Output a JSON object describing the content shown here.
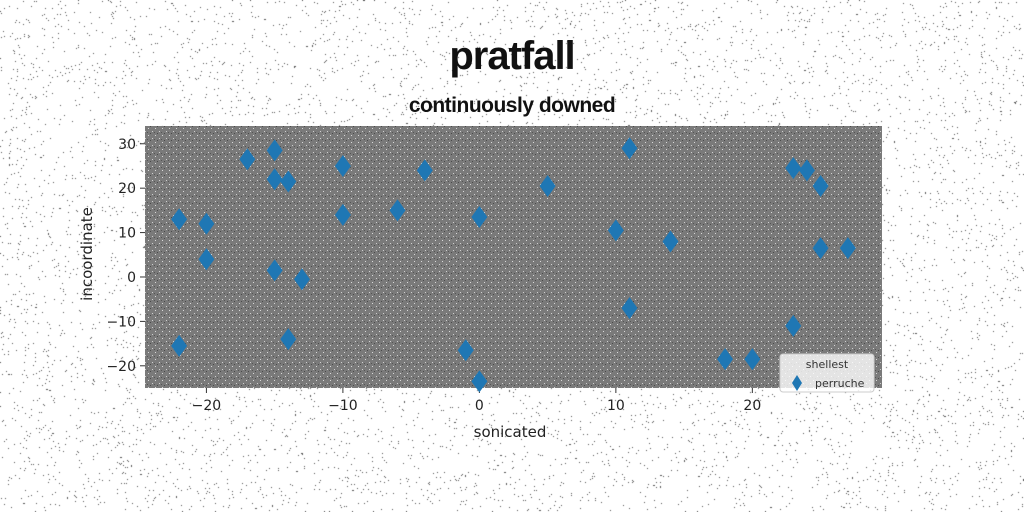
{
  "chart_data": {
    "type": "scatter",
    "title": "pratfall",
    "subtitle": "continuously downed",
    "xlabel": "sonicated",
    "ylabel": "incoordinate",
    "xlim": [
      -24.5,
      29.5
    ],
    "ylim": [
      -25,
      34
    ],
    "xticks": [
      -20,
      -10,
      0,
      10,
      20
    ],
    "yticks": [
      -20,
      -10,
      0,
      10,
      20,
      30
    ],
    "grid": false,
    "legend": {
      "title": "shellest",
      "position": "bottom-right"
    },
    "series": [
      {
        "name": "perruche",
        "color": "#1f77b4",
        "marker": "diamond",
        "points": [
          {
            "x": -22,
            "y": 13
          },
          {
            "x": -20,
            "y": 12
          },
          {
            "x": -20,
            "y": 4
          },
          {
            "x": -22,
            "y": -15.5
          },
          {
            "x": -17,
            "y": 26.5
          },
          {
            "x": -15,
            "y": 28.5
          },
          {
            "x": -15,
            "y": 22
          },
          {
            "x": -14,
            "y": 21.5
          },
          {
            "x": -15,
            "y": 1.5
          },
          {
            "x": -13,
            "y": -0.5
          },
          {
            "x": -14,
            "y": -14
          },
          {
            "x": -10,
            "y": 25
          },
          {
            "x": -10,
            "y": 14
          },
          {
            "x": -6,
            "y": 15
          },
          {
            "x": -4,
            "y": 24
          },
          {
            "x": 0,
            "y": 13.5
          },
          {
            "x": -1,
            "y": -16.5
          },
          {
            "x": 0,
            "y": -23.5
          },
          {
            "x": 5,
            "y": 20.5
          },
          {
            "x": 11,
            "y": 29
          },
          {
            "x": 10,
            "y": 10.5
          },
          {
            "x": 14,
            "y": 8
          },
          {
            "x": 11,
            "y": -7
          },
          {
            "x": 18,
            "y": -18.5
          },
          {
            "x": 20,
            "y": -18.5
          },
          {
            "x": 23,
            "y": 24.5
          },
          {
            "x": 24,
            "y": 24
          },
          {
            "x": 25,
            "y": 20.5
          },
          {
            "x": 25,
            "y": 6.5
          },
          {
            "x": 27,
            "y": 6.5
          },
          {
            "x": 23,
            "y": -11
          }
        ]
      }
    ]
  }
}
